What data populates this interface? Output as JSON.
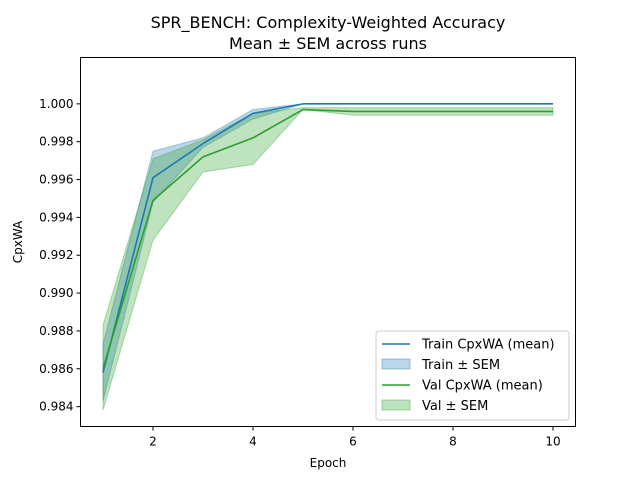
{
  "chart_data": {
    "type": "line",
    "title": "SPR_BENCH: Complexity-Weighted Accuracy",
    "subtitle": "Mean ± SEM across runs",
    "xlabel": "Epoch",
    "ylabel": "CpxWA",
    "xlim": [
      0.55,
      10.45
    ],
    "ylim": [
      0.98295,
      1.00245
    ],
    "xticks": [
      2,
      4,
      6,
      8,
      10
    ],
    "yticks": [
      0.984,
      0.986,
      0.988,
      0.99,
      0.992,
      0.994,
      0.996,
      0.998,
      1.0
    ],
    "x": [
      1,
      2,
      3,
      4,
      5,
      6,
      7,
      8,
      9,
      10
    ],
    "series": [
      {
        "name": "Train CpxWA (mean)",
        "band_name": "Train ± SEM",
        "color": "#1f77b4",
        "band_color": "#1f77b4",
        "mean": [
          0.9858,
          0.9961,
          0.9979,
          0.9995,
          1.0,
          1.0,
          1.0,
          1.0,
          1.0,
          1.0
        ],
        "lower": [
          0.9843,
          0.9948,
          0.9977,
          0.9992,
          1.0,
          1.0,
          1.0,
          1.0,
          1.0,
          1.0
        ],
        "upper": [
          0.9873,
          0.9975,
          0.9982,
          0.9997,
          1.0,
          1.0,
          1.0,
          1.0,
          1.0,
          1.0
        ]
      },
      {
        "name": "Val CpxWA (mean)",
        "band_name": "Val ± SEM",
        "color": "#2ca02c",
        "band_color": "#2ca02c",
        "mean": [
          0.986,
          0.9949,
          0.9972,
          0.9982,
          0.9997,
          0.9996,
          0.9996,
          0.9996,
          0.9996,
          0.9996
        ],
        "lower": [
          0.9838,
          0.9928,
          0.9964,
          0.9968,
          0.9997,
          0.9994,
          0.9994,
          0.9994,
          0.9994,
          0.9994
        ],
        "upper": [
          0.9883,
          0.9971,
          0.9981,
          0.9995,
          0.9998,
          0.9998,
          0.9998,
          0.9998,
          0.9998,
          0.9998
        ]
      }
    ],
    "legend_position": "lower-right",
    "grid": false
  }
}
